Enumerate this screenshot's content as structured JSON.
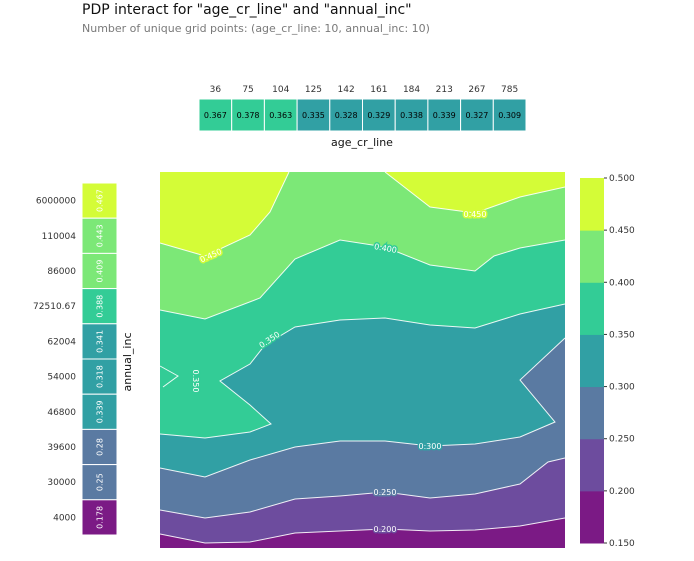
{
  "header": {
    "title": "PDP interact for \"age_cr_line\" and \"annual_inc\"",
    "subtitle": "Number of unique grid points: (age_cr_line: 10, annual_inc: 10)"
  },
  "chart_data": {
    "type": "contour",
    "title": "PDP interact for \"age_cr_line\" and \"annual_inc\"",
    "subtitle": "Number of unique grid points: (age_cr_line: 10, annual_inc: 10)",
    "x_feature": "age_cr_line",
    "y_feature": "annual_inc",
    "x_grid": [
      "36",
      "75",
      "104",
      "125",
      "142",
      "161",
      "184",
      "213",
      "267",
      "785"
    ],
    "x_pdp": [
      "0.367",
      "0.378",
      "0.363",
      "0.335",
      "0.328",
      "0.329",
      "0.338",
      "0.339",
      "0.327",
      "0.309"
    ],
    "y_grid": [
      "6000000",
      "110004",
      "86000",
      "72510.67",
      "62004",
      "54000",
      "46800",
      "39600",
      "30000",
      "4000"
    ],
    "y_pdp": [
      "0.467",
      "0.443",
      "0.409",
      "0.388",
      "0.341",
      "0.318",
      "0.339",
      "0.28",
      "0.25",
      "0.178"
    ],
    "contour_levels": [
      "0.150",
      "0.200",
      "0.250",
      "0.300",
      "0.350",
      "0.400",
      "0.450",
      "0.500"
    ],
    "contour_line_labels": [
      {
        "text": "0.450",
        "near": "top-left"
      },
      {
        "text": "0.450",
        "near": "top-right"
      },
      {
        "text": "0.400",
        "near": "upper-middle"
      },
      {
        "text": "0.350",
        "near": "middle-left"
      },
      {
        "text": "0.350",
        "near": "left-edge"
      },
      {
        "text": "0.300",
        "near": "lower-middle"
      },
      {
        "text": "0.250",
        "near": "lower-middle"
      },
      {
        "text": "0.200",
        "near": "bottom"
      }
    ],
    "colorbar": {
      "ticks": [
        "0.500",
        "0.450",
        "0.400",
        "0.350",
        "0.300",
        "0.250",
        "0.200",
        "0.150"
      ],
      "placement": "right"
    },
    "grid": false,
    "colors": {
      "band_0_150": "#7b1a85",
      "band_0_200": "#6d4c9e",
      "band_0_250": "#5a7aa2",
      "band_0_300": "#31a0a4",
      "band_0_350": "#33cc96",
      "band_0_400": "#7ce877",
      "band_0_450": "#d4fc37"
    }
  }
}
